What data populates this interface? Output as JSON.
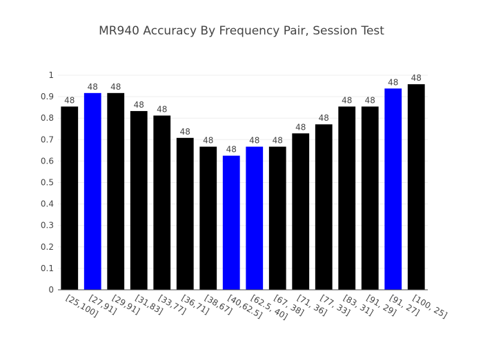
{
  "chart_data": {
    "type": "bar",
    "title": "MR940 Accuracy By Frequency Pair, Session Test",
    "xlabel": "",
    "ylabel": "",
    "ylim": [
      0,
      1
    ],
    "y_ticks": [
      "0",
      "0.1",
      "0.2",
      "0.3",
      "0.4",
      "0.5",
      "0.6",
      "0.7",
      "0.8",
      "0.9",
      "1"
    ],
    "grid": true,
    "legend": "none",
    "categories": [
      "[25,100]",
      "[27,91]",
      "[29,91]",
      "[31,83]",
      "[33,77]",
      "[36,71]",
      "[38,67]",
      "[40,62.5]",
      "[62.5, 40]",
      "[67, 38]",
      "[71, 36]",
      "[77, 33]",
      "[83, 31]",
      "[91, 29]",
      "[91, 27]",
      "[100, 25]"
    ],
    "values": [
      0.854,
      0.917,
      0.917,
      0.833,
      0.812,
      0.708,
      0.667,
      0.625,
      0.667,
      0.667,
      0.729,
      0.771,
      0.854,
      0.854,
      0.938,
      0.958
    ],
    "data_labels": [
      "48",
      "48",
      "48",
      "48",
      "48",
      "48",
      "48",
      "48",
      "48",
      "48",
      "48",
      "48",
      "48",
      "48",
      "48",
      "48"
    ],
    "colors": [
      "#000000",
      "#0000ff",
      "#000000",
      "#000000",
      "#000000",
      "#000000",
      "#000000",
      "#0000ff",
      "#0000ff",
      "#000000",
      "#000000",
      "#000000",
      "#000000",
      "#000000",
      "#0000ff",
      "#000000"
    ]
  }
}
